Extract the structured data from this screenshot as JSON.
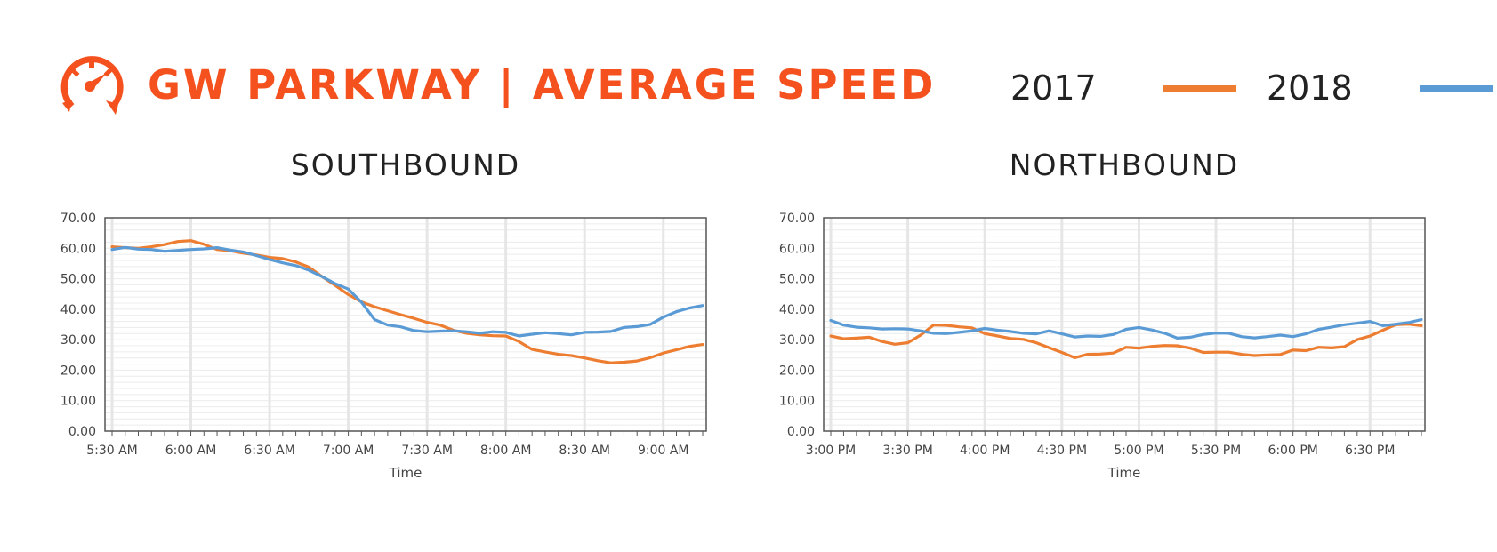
{
  "header": {
    "title": "GW PARKWAY | AVERAGE SPEED",
    "accent_color": "#F4511E",
    "logo_icon": "speedometer-icon"
  },
  "legend": [
    {
      "label": "2017",
      "color": "#ED7D31"
    },
    {
      "label": "2018",
      "color": "#5B9BD5"
    }
  ],
  "chart_data": [
    {
      "type": "line",
      "title": "SOUTHBOUND",
      "xlabel": "Time",
      "ylabel": "",
      "ylim": [
        0,
        70
      ],
      "yticks": [
        "0.00",
        "10.00",
        "20.00",
        "30.00",
        "40.00",
        "50.00",
        "60.00",
        "70.00"
      ],
      "x_start": "5:30 AM",
      "x_step_minutes": 5,
      "xtick_labels": [
        "5:30 AM",
        "6:00 AM",
        "6:30 AM",
        "7:00 AM",
        "7:30 AM",
        "8:00 AM",
        "8:30 AM",
        "9:00 AM"
      ],
      "grid": true,
      "series": [
        {
          "name": "2017",
          "color": "#ED7D31",
          "values": [
            60.5,
            60.2,
            60.0,
            60.5,
            61.2,
            62.2,
            62.5,
            61.3,
            59.6,
            59.2,
            58.4,
            57.8,
            57.0,
            56.6,
            55.5,
            53.8,
            50.7,
            47.8,
            44.8,
            42.4,
            40.8,
            39.5,
            38.2,
            37.0,
            35.7,
            34.8,
            33.1,
            32.1,
            31.6,
            31.3,
            31.2,
            29.4,
            26.8,
            26.0,
            25.2,
            24.8,
            24.0,
            23.1,
            22.4,
            22.6,
            23.0,
            24.1,
            25.6,
            26.7,
            27.8,
            28.4
          ]
        },
        {
          "name": "2018",
          "color": "#5B9BD5",
          "values": [
            59.6,
            60.3,
            59.7,
            59.6,
            59.0,
            59.3,
            59.6,
            59.8,
            60.2,
            59.4,
            58.8,
            57.6,
            56.3,
            55.2,
            54.3,
            52.8,
            50.7,
            48.4,
            46.6,
            42.3,
            36.6,
            34.8,
            34.2,
            33.0,
            32.6,
            32.8,
            32.9,
            32.6,
            32.1,
            32.6,
            32.4,
            31.2,
            31.8,
            32.3,
            32.0,
            31.6,
            32.4,
            32.5,
            32.7,
            34.0,
            34.3,
            35.0,
            37.4,
            39.2,
            40.4,
            41.2
          ]
        }
      ]
    },
    {
      "type": "line",
      "title": "NORTHBOUND",
      "xlabel": "Time",
      "ylabel": "",
      "ylim": [
        0,
        70
      ],
      "yticks": [
        "0.00",
        "10.00",
        "20.00",
        "30.00",
        "40.00",
        "50.00",
        "60.00",
        "70.00"
      ],
      "x_start": "3:00 PM",
      "x_step_minutes": 5,
      "xtick_labels": [
        "3:00 PM",
        "3:30 PM",
        "4:00 PM",
        "4:30 PM",
        "5:00 PM",
        "5:30 PM",
        "6:00 PM",
        "6:30 PM"
      ],
      "grid": true,
      "series": [
        {
          "name": "2017",
          "color": "#ED7D31",
          "values": [
            31.2,
            30.3,
            30.5,
            30.8,
            29.4,
            28.5,
            29.0,
            31.5,
            34.8,
            34.7,
            34.2,
            33.9,
            32.0,
            31.2,
            30.4,
            30.1,
            29.0,
            27.4,
            25.8,
            24.1,
            25.2,
            25.3,
            25.6,
            27.5,
            27.2,
            27.8,
            28.1,
            28.0,
            27.2,
            25.8,
            25.9,
            25.9,
            25.2,
            24.8,
            25.0,
            25.1,
            26.6,
            26.4,
            27.5,
            27.3,
            27.7,
            30.0,
            31.2,
            33.1,
            34.9,
            35.1,
            34.6
          ]
        },
        {
          "name": "2018",
          "color": "#5B9BD5",
          "values": [
            36.3,
            34.8,
            34.1,
            33.9,
            33.5,
            33.6,
            33.5,
            32.9,
            32.1,
            32.0,
            32.4,
            32.9,
            33.7,
            33.1,
            32.7,
            32.1,
            31.9,
            32.9,
            31.9,
            30.9,
            31.2,
            31.1,
            31.7,
            33.4,
            34.0,
            33.2,
            32.1,
            30.5,
            30.8,
            31.7,
            32.2,
            32.1,
            31.0,
            30.6,
            31.0,
            31.5,
            31.0,
            31.9,
            33.4,
            34.1,
            34.9,
            35.4,
            36.0,
            34.6,
            35.1,
            35.6,
            36.6
          ]
        }
      ]
    }
  ]
}
